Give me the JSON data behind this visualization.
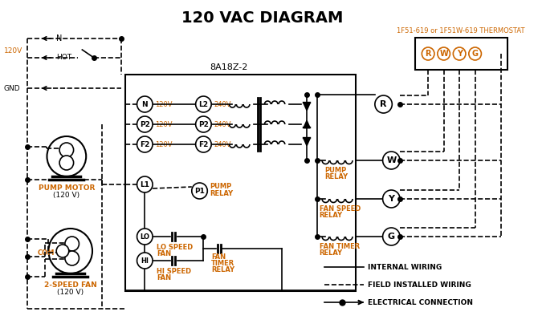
{
  "title": "120 VAC DIAGRAM",
  "title_fontsize": 14,
  "title_fontweight": "bold",
  "bg_color": "#ffffff",
  "line_color": "#000000",
  "text_color": "#000000",
  "orange_color": "#cc6600",
  "thermostat_label": "1F51-619 or 1F51W-619 THERMOSTAT",
  "box_label": "8A18Z-2",
  "legend_items": [
    {
      "label": "INTERNAL WIRING",
      "style": "solid"
    },
    {
      "label": "FIELD INSTALLED WIRING",
      "style": "dashed"
    },
    {
      "label": "ELECTRICAL CONNECTION",
      "style": "dot_arrow"
    }
  ]
}
